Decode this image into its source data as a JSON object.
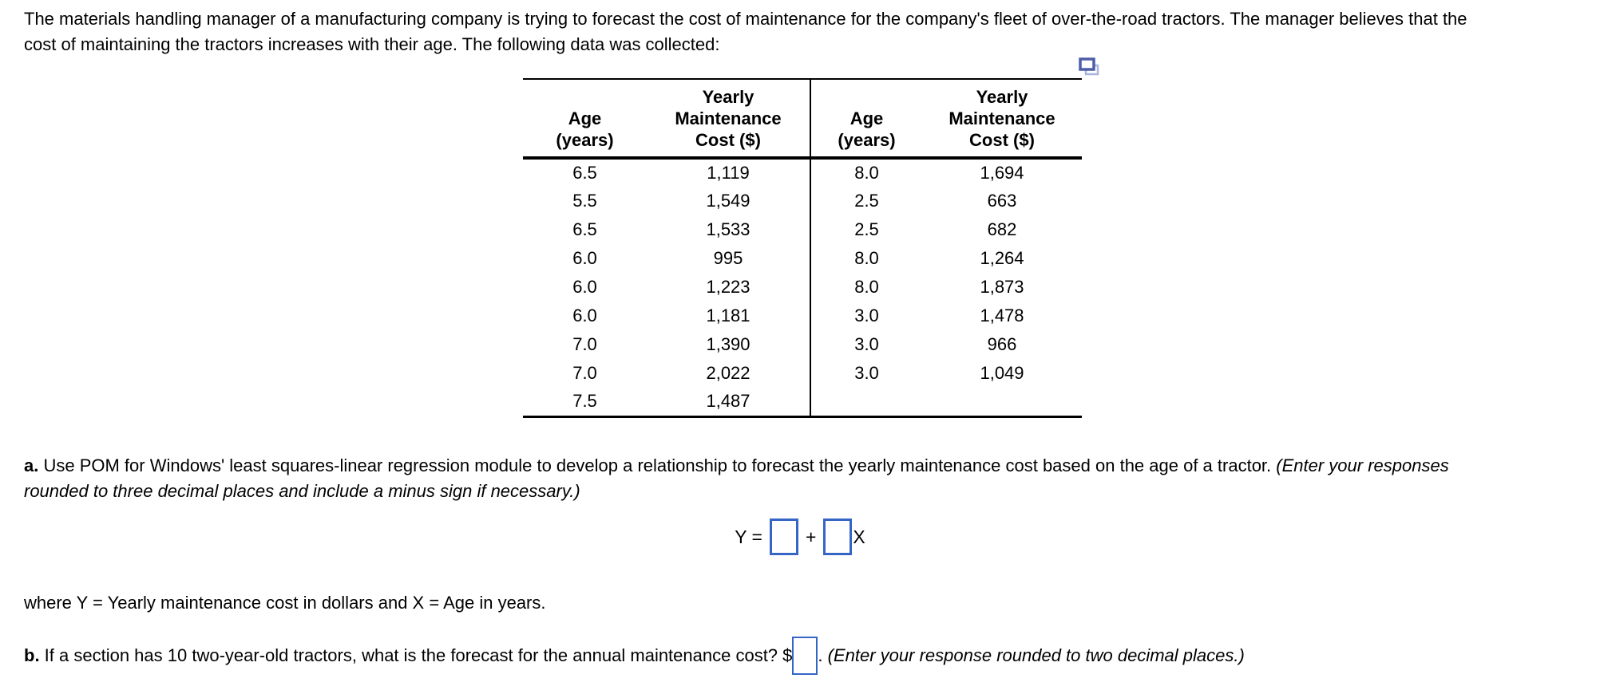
{
  "intro": "The materials handling manager of a manufacturing company is trying to forecast the cost of maintenance for the company's fleet of over-the-road tractors. The manager believes that the cost of maintaining the tractors increases with their age. The following data was collected:",
  "icons": {
    "copy": "copy-overlapping-rectangles"
  },
  "table": {
    "headers": {
      "age": "Age\n(years)",
      "cost": "Yearly\nMaintenance\nCost ($)"
    },
    "rows": [
      [
        "6.5",
        "1,119",
        "8.0",
        "1,694"
      ],
      [
        "5.5",
        "1,549",
        "2.5",
        "663"
      ],
      [
        "6.5",
        "1,533",
        "2.5",
        "682"
      ],
      [
        "6.0",
        "995",
        "8.0",
        "1,264"
      ],
      [
        "6.0",
        "1,223",
        "8.0",
        "1,873"
      ],
      [
        "6.0",
        "1,181",
        "3.0",
        "1,478"
      ],
      [
        "7.0",
        "1,390",
        "3.0",
        "966"
      ],
      [
        "7.0",
        "2,022",
        "3.0",
        "1,049"
      ],
      [
        "7.5",
        "1,487",
        "",
        ""
      ]
    ]
  },
  "part_a": {
    "label": "a.",
    "text": " Use POM for Windows' least squares-linear regression module to develop a relationship to forecast the yearly maintenance cost based on the age of a tractor. ",
    "note": "(Enter your responses rounded to three decimal places and include a minus sign if necessary.)"
  },
  "equation": {
    "lhs": "Y =",
    "plus": "+",
    "rhs_var": "X",
    "intercept_value": "",
    "slope_value": ""
  },
  "where_line": "where Y = Yearly maintenance cost in dollars and X = Age in years.",
  "part_b": {
    "label": "b.",
    "text": " If a section has 10 two-year-old tractors, what is the forecast for the annual maintenance cost? ",
    "currency": "$",
    "answer_value": "",
    "period": ". ",
    "note": "(Enter your response rounded to two decimal places.)"
  },
  "colors": {
    "input_border": "#3565C5",
    "copy_icon_front": "#4D5DA9",
    "copy_icon_back": "#AAB4DD"
  }
}
